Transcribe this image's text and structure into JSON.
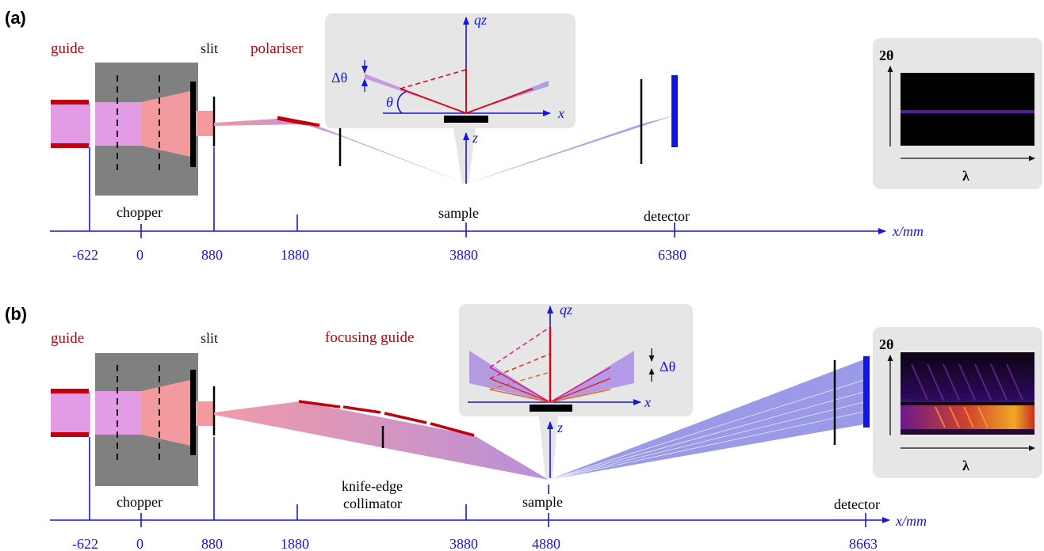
{
  "colors": {
    "axis_blue": "#1515e0",
    "guide_red": "#c0000a",
    "chopper_gray": "#808080",
    "inset_gray": "#e6e6e6",
    "beam_pink": "#e39be6",
    "beam_salmon": "#f29a9e",
    "beam_purple": "#9a9ae8",
    "detector_black": "#000000"
  },
  "panel_a": {
    "panel_label": "(a)",
    "guide_label": "guide",
    "slit_label": "slit",
    "polariser_label": "polariser",
    "chopper_label": "chopper",
    "sample_label": "sample",
    "detector_label": "detector",
    "axis_label": "x/mm",
    "ticks": [
      "-622",
      "0",
      "880",
      "1880",
      "3880",
      "6380"
    ],
    "inset": {
      "qz_label": "qz",
      "x_label": "x",
      "z_label": "z",
      "theta_label": "θ",
      "dtheta_label": "Δθ"
    },
    "detector_image": {
      "y_label": "2θ",
      "x_label": "λ"
    }
  },
  "panel_b": {
    "panel_label": "(b)",
    "guide_label": "guide",
    "slit_label": "slit",
    "focusing_guide_label": "focusing guide",
    "chopper_label": "chopper",
    "collimator_label_line1": "knife-edge",
    "collimator_label_line2": "collimator",
    "sample_label": "sample",
    "detector_label": "detector",
    "axis_label": "x/mm",
    "ticks": [
      "-622",
      "0",
      "880",
      "1880",
      "3880",
      "4880",
      "8663"
    ],
    "inset": {
      "qz_label": "qz",
      "x_label": "x",
      "z_label": "z",
      "dtheta_label": "Δθ"
    },
    "detector_image": {
      "y_label": "2θ",
      "x_label": "λ"
    }
  }
}
